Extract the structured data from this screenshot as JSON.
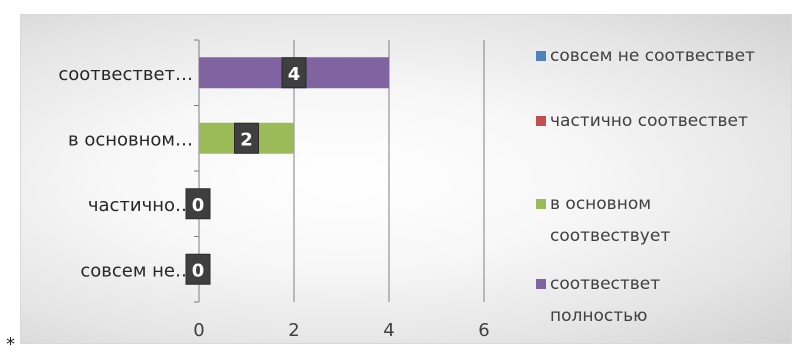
{
  "footnote_mark": "*",
  "chart_data": {
    "type": "bar",
    "orientation": "horizontal",
    "categories": [
      "совсем не…",
      "частично…",
      "в основном…",
      "соотвествет…"
    ],
    "values": [
      0,
      0,
      2,
      4
    ],
    "data_labels": [
      "0",
      "0",
      "2",
      "4"
    ],
    "bar_colors": [
      "#4f81bd",
      "#c0504d",
      "#9bbb59",
      "#8064a2"
    ],
    "xlim": [
      0,
      6
    ],
    "xticks": [
      "0",
      "2",
      "4",
      "6"
    ],
    "grid": true,
    "legend": {
      "position": "right",
      "entries": [
        {
          "color": "#4f81bd",
          "lines": [
            "совсем не соотвествет"
          ]
        },
        {
          "color": "#c0504d",
          "lines": [
            "частично соотвествет"
          ]
        },
        {
          "color": "#9bbb59",
          "lines": [
            "в основном",
            "соотвествует"
          ]
        },
        {
          "color": "#8064a2",
          "lines": [
            "соотвествет",
            "полностью"
          ]
        }
      ]
    }
  }
}
